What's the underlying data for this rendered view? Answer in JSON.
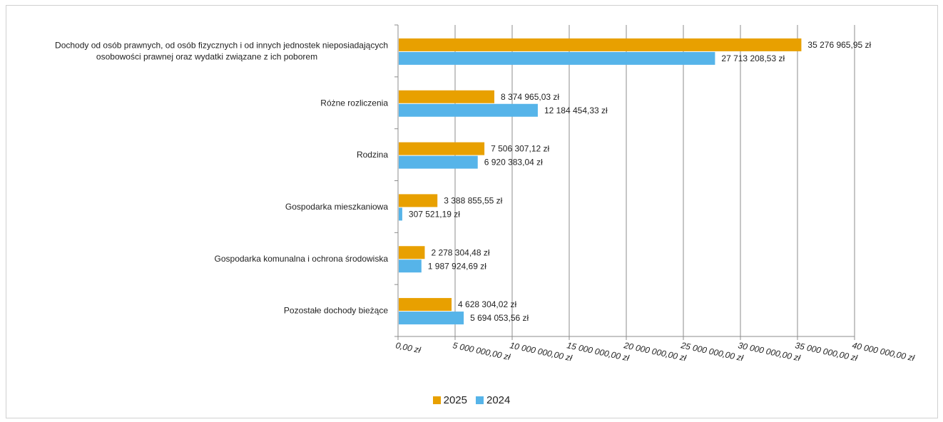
{
  "chart_data": {
    "type": "bar",
    "orientation": "horizontal",
    "categories": [
      [
        "Dochody od osób prawnych, od osób fizycznych i od innych jednostek nieposiadających",
        "osobowości prawnej oraz wydatki związane z ich poborem"
      ],
      [
        "Różne rozliczenia"
      ],
      [
        "Rodzina"
      ],
      [
        "Gospodarka mieszkaniowa"
      ],
      [
        "Gospodarka komunalna i ochrona środowiska"
      ],
      [
        "Pozostałe dochody bieżące"
      ]
    ],
    "series": [
      {
        "name": "2025",
        "color": "#E8A000",
        "values": [
          35276965.95,
          8374965.03,
          7506307.12,
          3388855.55,
          2278304.48,
          4628304.02
        ],
        "labels": [
          "35 276 965,95 zł",
          "8 374 965,03 zł",
          "7 506 307,12 zł",
          "3 388 855,55 zł",
          "2 278 304,48 zł",
          "4 628 304,02 zł"
        ]
      },
      {
        "name": "2024",
        "color": "#56B4E9",
        "values": [
          27713208.53,
          12184454.33,
          6920383.04,
          307521.19,
          1987924.69,
          5694053.56
        ],
        "labels": [
          "27 713 208,53 zł",
          "12 184 454,33 zł",
          "6 920 383,04 zł",
          "307 521,19 zł",
          "1 987 924,69 zł",
          "5 694 053,56 zł"
        ]
      }
    ],
    "xlim": [
      0,
      40000000
    ],
    "xticks": [
      0,
      5000000,
      10000000,
      15000000,
      20000000,
      25000000,
      30000000,
      35000000,
      40000000
    ],
    "xtick_labels": [
      "0,00 zł",
      "5 000 000,00 zł",
      "10 000 000,00 zł",
      "15 000 000,00 zł",
      "20 000 000,00 zł",
      "25 000 000,00 zł",
      "30 000 000,00 zł",
      "35 000 000,00 zł",
      "40 000 000,00 zł"
    ],
    "grid": true,
    "legend_position": "bottom"
  }
}
